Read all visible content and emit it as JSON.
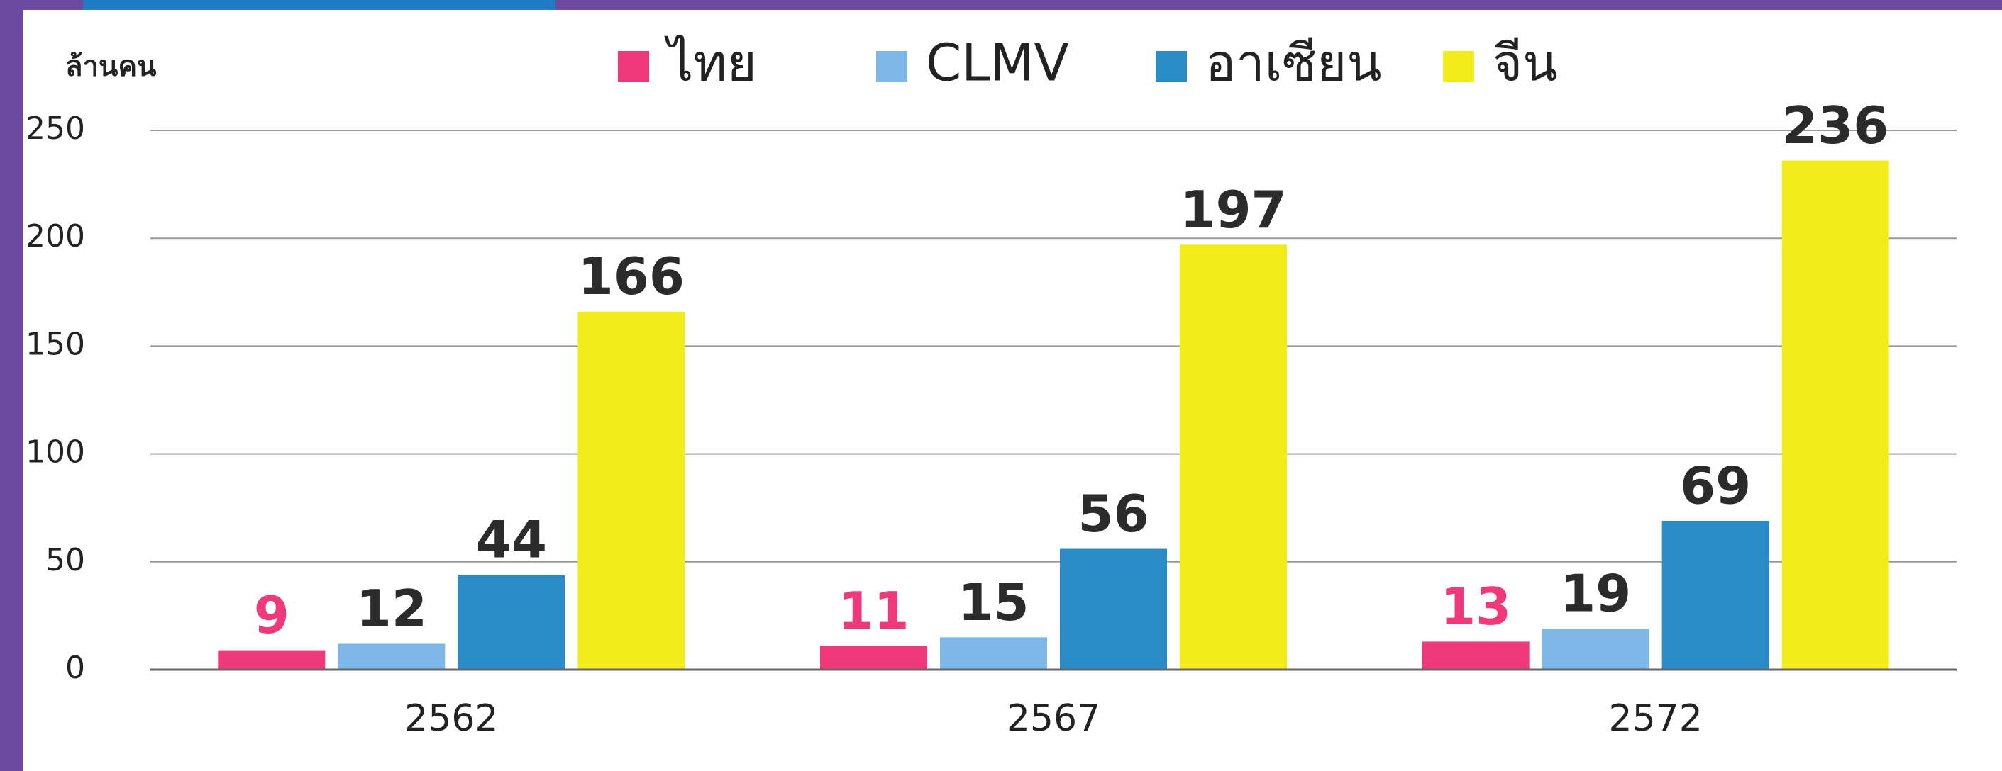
{
  "chart_data": {
    "type": "bar",
    "y_axis_label": "ล้านคน",
    "categories": [
      "2562",
      "2567",
      "2572"
    ],
    "series": [
      {
        "name": "ไทย",
        "color": "#f0397a",
        "label_color": "#f0397a",
        "values": [
          9,
          11,
          13
        ]
      },
      {
        "name": "CLMV",
        "color": "#7db8e8",
        "label_color": "#2b2b2b",
        "values": [
          12,
          15,
          19
        ]
      },
      {
        "name": "อาเซียน",
        "color": "#2b8bc6",
        "label_color": "#2b2b2b",
        "values": [
          44,
          56,
          69
        ]
      },
      {
        "name": "จีน",
        "color": "#f2ec1a",
        "label_color": "#2b2b2b",
        "values": [
          166,
          197,
          236
        ]
      }
    ],
    "ylim": [
      0,
      250
    ],
    "yticks": [
      0,
      50,
      100,
      150,
      200,
      250
    ],
    "grid": true,
    "legend": "top"
  }
}
